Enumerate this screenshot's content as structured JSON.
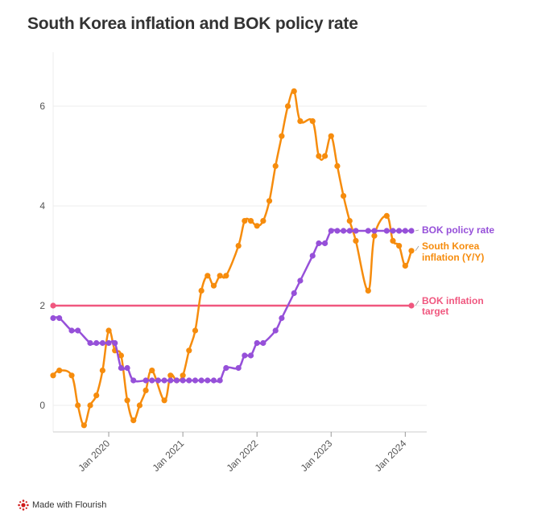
{
  "chart_data": {
    "type": "line",
    "title": "South Korea inflation and BOK policy rate",
    "xlabel": "",
    "ylabel": "",
    "xlim": [
      "2019-04",
      "2024-02"
    ],
    "ylim": [
      -0.5,
      7
    ],
    "y_ticks": [
      0,
      2,
      4,
      6
    ],
    "x_ticks": [
      {
        "date": "2020-01",
        "label": "Jan 2020"
      },
      {
        "date": "2021-01",
        "label": "Jan 2021"
      },
      {
        "date": "2022-01",
        "label": "Jan 2022"
      },
      {
        "date": "2023-01",
        "label": "Jan 2023"
      },
      {
        "date": "2024-01",
        "label": "Jan 2024"
      }
    ],
    "series": [
      {
        "name": "BOK inflation target",
        "label_lines": [
          "BOK inflation",
          "target"
        ],
        "color": "#f0577f",
        "points": [
          [
            "2019-04",
            2
          ],
          [
            "2024-02",
            2
          ]
        ]
      },
      {
        "name": "South Korea inflation (Y/Y)",
        "label_lines": [
          "South Korea",
          "inflation (Y/Y)"
        ],
        "color": "#f68c0d",
        "points": [
          [
            "2019-04",
            0.6
          ],
          [
            "2019-05",
            0.7
          ],
          [
            "2019-07",
            0.6
          ],
          [
            "2019-08",
            0.0
          ],
          [
            "2019-09",
            -0.4
          ],
          [
            "2019-10",
            0.0
          ],
          [
            "2019-11",
            0.2
          ],
          [
            "2019-12",
            0.7
          ],
          [
            "2020-01",
            1.5
          ],
          [
            "2020-02",
            1.1
          ],
          [
            "2020-03",
            1.0
          ],
          [
            "2020-04",
            0.1
          ],
          [
            "2020-05",
            -0.3
          ],
          [
            "2020-06",
            0.0
          ],
          [
            "2020-07",
            0.3
          ],
          [
            "2020-08",
            0.7
          ],
          [
            "2020-10",
            0.1
          ],
          [
            "2020-11",
            0.6
          ],
          [
            "2020-12",
            0.5
          ],
          [
            "2021-01",
            0.6
          ],
          [
            "2021-02",
            1.1
          ],
          [
            "2021-03",
            1.5
          ],
          [
            "2021-04",
            2.3
          ],
          [
            "2021-05",
            2.6
          ],
          [
            "2021-06",
            2.4
          ],
          [
            "2021-07",
            2.6
          ],
          [
            "2021-08",
            2.6
          ],
          [
            "2021-10",
            3.2
          ],
          [
            "2021-11",
            3.7
          ],
          [
            "2021-12",
            3.7
          ],
          [
            "2022-01",
            3.6
          ],
          [
            "2022-02",
            3.7
          ],
          [
            "2022-03",
            4.1
          ],
          [
            "2022-04",
            4.8
          ],
          [
            "2022-05",
            5.4
          ],
          [
            "2022-06",
            6.0
          ],
          [
            "2022-07",
            6.3
          ],
          [
            "2022-08",
            5.7
          ],
          [
            "2022-10",
            5.7
          ],
          [
            "2022-11",
            5.0
          ],
          [
            "2022-12",
            5.0
          ],
          [
            "2023-01",
            5.4
          ],
          [
            "2023-02",
            4.8
          ],
          [
            "2023-03",
            4.2
          ],
          [
            "2023-04",
            3.7
          ],
          [
            "2023-05",
            3.3
          ],
          [
            "2023-07",
            2.3
          ],
          [
            "2023-08",
            3.4
          ],
          [
            "2023-10",
            3.8
          ],
          [
            "2023-11",
            3.3
          ],
          [
            "2023-12",
            3.2
          ],
          [
            "2024-01",
            2.8
          ],
          [
            "2024-02",
            3.1
          ]
        ]
      },
      {
        "name": "BOK policy rate",
        "label_lines": [
          "BOK policy rate"
        ],
        "color": "#9650d9",
        "points": [
          [
            "2019-04",
            1.75
          ],
          [
            "2019-05",
            1.75
          ],
          [
            "2019-07",
            1.5
          ],
          [
            "2019-08",
            1.5
          ],
          [
            "2019-10",
            1.25
          ],
          [
            "2019-11",
            1.25
          ],
          [
            "2019-12",
            1.25
          ],
          [
            "2020-01",
            1.25
          ],
          [
            "2020-02",
            1.25
          ],
          [
            "2020-03",
            0.75
          ],
          [
            "2020-04",
            0.75
          ],
          [
            "2020-05",
            0.5
          ],
          [
            "2020-07",
            0.5
          ],
          [
            "2020-08",
            0.5
          ],
          [
            "2020-09",
            0.5
          ],
          [
            "2020-10",
            0.5
          ],
          [
            "2020-11",
            0.5
          ],
          [
            "2020-12",
            0.5
          ],
          [
            "2021-01",
            0.5
          ],
          [
            "2021-02",
            0.5
          ],
          [
            "2021-03",
            0.5
          ],
          [
            "2021-04",
            0.5
          ],
          [
            "2021-05",
            0.5
          ],
          [
            "2021-06",
            0.5
          ],
          [
            "2021-07",
            0.5
          ],
          [
            "2021-08",
            0.75
          ],
          [
            "2021-10",
            0.75
          ],
          [
            "2021-11",
            1.0
          ],
          [
            "2021-12",
            1.0
          ],
          [
            "2022-01",
            1.25
          ],
          [
            "2022-02",
            1.25
          ],
          [
            "2022-04",
            1.5
          ],
          [
            "2022-05",
            1.75
          ],
          [
            "2022-07",
            2.25
          ],
          [
            "2022-08",
            2.5
          ],
          [
            "2022-10",
            3.0
          ],
          [
            "2022-11",
            3.25
          ],
          [
            "2022-12",
            3.25
          ],
          [
            "2023-01",
            3.5
          ],
          [
            "2023-02",
            3.5
          ],
          [
            "2023-03",
            3.5
          ],
          [
            "2023-04",
            3.5
          ],
          [
            "2023-05",
            3.5
          ],
          [
            "2023-07",
            3.5
          ],
          [
            "2023-08",
            3.5
          ],
          [
            "2023-10",
            3.5
          ],
          [
            "2023-11",
            3.5
          ],
          [
            "2023-12",
            3.5
          ],
          [
            "2024-01",
            3.5
          ],
          [
            "2024-02",
            3.5
          ]
        ]
      }
    ]
  },
  "footer": {
    "text": "Made with Flourish"
  }
}
